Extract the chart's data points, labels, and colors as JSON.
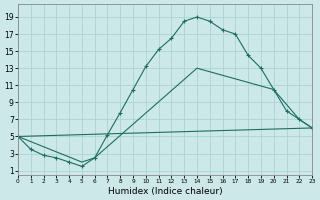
{
  "bg_color": "#cce8e8",
  "grid_color": "#aad4d4",
  "line_color": "#1a7060",
  "xlabel": "Humidex (Indice chaleur)",
  "xlim": [
    0,
    23
  ],
  "ylim": [
    1,
    20
  ],
  "xticks": [
    0,
    1,
    2,
    3,
    4,
    5,
    6,
    7,
    8,
    9,
    10,
    11,
    12,
    13,
    14,
    15,
    16,
    17,
    18,
    19,
    20,
    21,
    22,
    23
  ],
  "yticks": [
    1,
    3,
    5,
    7,
    9,
    11,
    13,
    15,
    17,
    19
  ],
  "curve1_x": [
    0,
    1,
    2,
    3,
    4,
    5,
    6,
    7,
    8,
    9,
    10,
    11,
    12,
    13,
    14,
    15,
    16,
    17,
    18,
    19,
    20,
    21,
    22,
    23
  ],
  "curve1_y": [
    5.0,
    3.5,
    2.8,
    2.5,
    2.0,
    1.5,
    2.5,
    5.2,
    7.8,
    10.5,
    13.2,
    15.2,
    16.5,
    18.5,
    19.0,
    18.5,
    17.5,
    17.0,
    14.5,
    13.0,
    10.5,
    8.0,
    7.0,
    6.0
  ],
  "line2_x": [
    0,
    5,
    6,
    14,
    20,
    22,
    23
  ],
  "line2_y": [
    5.0,
    2.0,
    2.5,
    13.0,
    10.5,
    7.0,
    6.0
  ],
  "line3_x": [
    0,
    23
  ],
  "line3_y": [
    5.0,
    6.0
  ]
}
